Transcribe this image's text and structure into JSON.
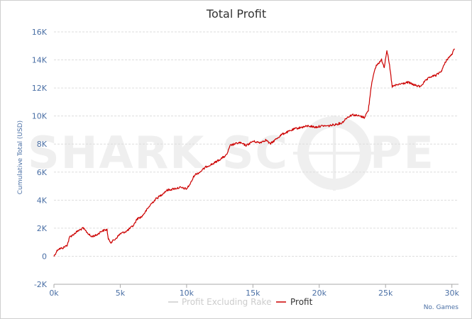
{
  "chart_data": {
    "type": "line",
    "title": "Total Profit",
    "ylabel": "Cumulative Total (USD)",
    "xlabel": "No. Games",
    "watermark": {
      "left": "SHARK SC",
      "right": "PE"
    },
    "xlim": [
      0,
      30500
    ],
    "ylim": [
      -2000,
      16000
    ],
    "x_ticks": [
      0,
      5000,
      10000,
      15000,
      20000,
      25000,
      30000
    ],
    "x_tick_labels": [
      "0k",
      "5k",
      "10k",
      "15k",
      "20k",
      "25k",
      "30k"
    ],
    "y_ticks": [
      -2000,
      0,
      2000,
      4000,
      6000,
      8000,
      10000,
      12000,
      14000,
      16000
    ],
    "y_tick_labels": [
      "-2K",
      "0",
      "2K",
      "4K",
      "6K",
      "8K",
      "10K",
      "12K",
      "14K",
      "16K"
    ],
    "grid": true,
    "legend_position": "bottom-center",
    "series": [
      {
        "name": "Profit Excluding Rake",
        "color": "#cccccc",
        "x": [],
        "y": []
      },
      {
        "name": "Profit",
        "color": "#cc0000",
        "x": [
          0,
          300,
          700,
          1000,
          1200,
          1400,
          1800,
          2200,
          2500,
          2800,
          3200,
          3600,
          4000,
          4100,
          4300,
          4600,
          5000,
          5500,
          6000,
          6300,
          6600,
          7000,
          7300,
          7700,
          8000,
          8500,
          9000,
          9500,
          10000,
          10300,
          10600,
          11000,
          11500,
          12000,
          12500,
          13000,
          13300,
          13600,
          14000,
          14500,
          15000,
          15500,
          16000,
          16300,
          16800,
          17200,
          17700,
          18200,
          18700,
          19200,
          19700,
          20200,
          20700,
          21200,
          21700,
          22100,
          22500,
          23000,
          23400,
          23700,
          23900,
          24000,
          24300,
          24500,
          24700,
          24900,
          25100,
          25300,
          25500,
          25800,
          26200,
          26700,
          27200,
          27600,
          28000,
          28400,
          28800,
          29200,
          29600,
          30000,
          30200
        ],
        "y": [
          0,
          500,
          600,
          800,
          1400,
          1500,
          1800,
          2000,
          1700,
          1400,
          1500,
          1800,
          1900,
          1200,
          1000,
          1200,
          1600,
          1800,
          2200,
          2700,
          2800,
          3300,
          3700,
          4100,
          4300,
          4700,
          4800,
          4900,
          4800,
          5200,
          5800,
          6000,
          6400,
          6600,
          6900,
          7200,
          7900,
          8000,
          8100,
          7900,
          8200,
          8100,
          8300,
          8000,
          8400,
          8700,
          8900,
          9100,
          9200,
          9300,
          9200,
          9300,
          9300,
          9400,
          9500,
          9900,
          10100,
          10000,
          9900,
          10400,
          12000,
          12600,
          13600,
          13800,
          14000,
          13500,
          14700,
          13600,
          12100,
          12200,
          12300,
          12400,
          12200,
          12100,
          12500,
          12800,
          12900,
          13200,
          14000,
          14400,
          14800
        ]
      }
    ]
  }
}
